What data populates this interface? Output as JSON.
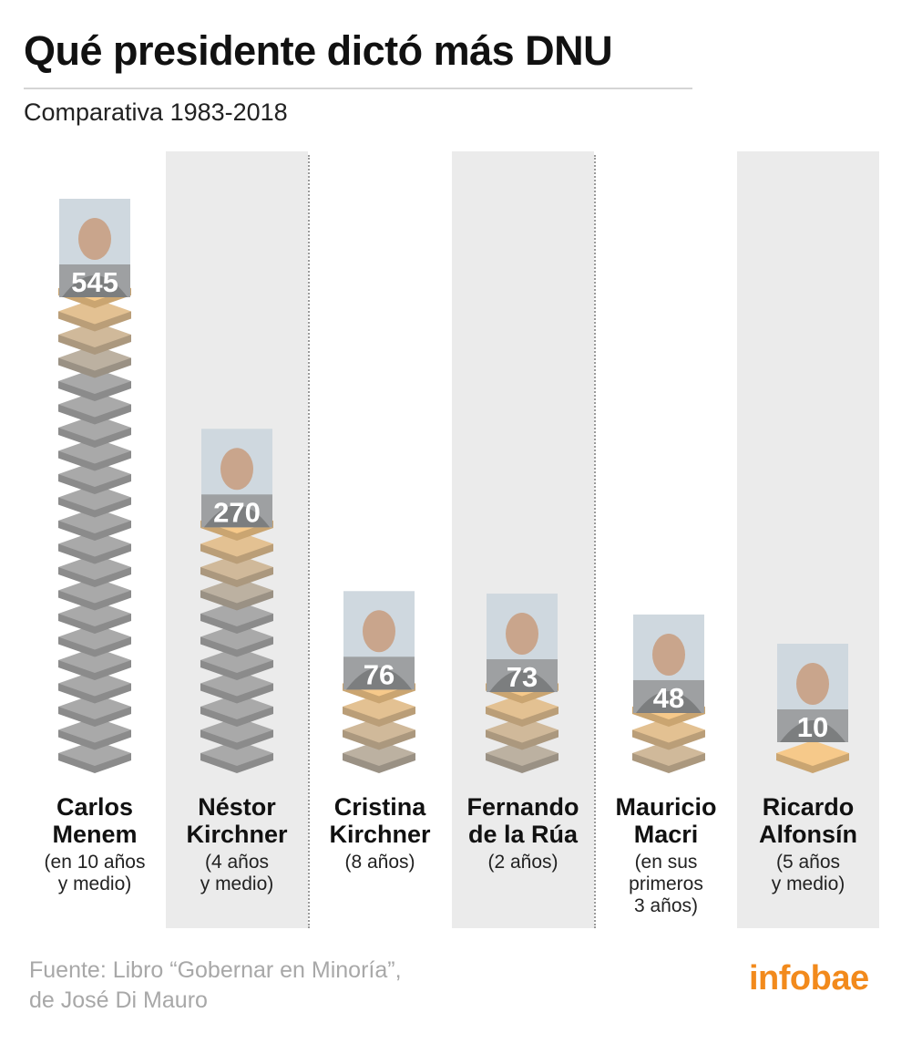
{
  "title": "Qué presidente dictó más DNU",
  "subtitle": "Comparativa 1983-2018",
  "source": {
    "line1": "Fuente: Libro “Gobernar en Minoría”,",
    "line2": "de José Di Mauro"
  },
  "logo": "infobae",
  "colors": {
    "background": "#ffffff",
    "band": "#ebebeb",
    "stack_gray": "#a9a9a9",
    "stack_top": "#f6c98a",
    "logo": "#f28a1c"
  },
  "chart_data": {
    "type": "bar",
    "title": "Qué presidente dictó más DNU",
    "subtitle": "Comparativa 1983-2018",
    "xlabel": "",
    "ylabel": "",
    "categories": [
      "Carlos Menem",
      "Néstor Kirchner",
      "Cristina Kirchner",
      "Fernando de la Rúa",
      "Mauricio Macri",
      "Ricardo Alfonsín"
    ],
    "values": [
      545,
      270,
      76,
      73,
      48,
      10
    ],
    "labels": [
      "545",
      "270",
      "76",
      "73",
      "48",
      "10"
    ],
    "presidents": [
      {
        "name1": "Carlos",
        "name2": "Menem",
        "note": [
          "(en 10 años",
          "y medio)"
        ],
        "value": 545,
        "label": "545"
      },
      {
        "name1": "Néstor",
        "name2": "Kirchner",
        "note": [
          "(4 años",
          "y medio)"
        ],
        "value": 270,
        "label": "270"
      },
      {
        "name1": "Cristina",
        "name2": "Kirchner",
        "note": [
          "(8 años)"
        ],
        "value": 76,
        "label": "76"
      },
      {
        "name1": "Fernando",
        "name2": "de la Rúa",
        "note": [
          "(2 años)"
        ],
        "value": 73,
        "label": "73"
      },
      {
        "name1": "Mauricio",
        "name2": "Macri",
        "note": [
          "(en sus",
          "primeros",
          "3 años)"
        ],
        "value": 48,
        "label": "48"
      },
      {
        "name1": "Ricardo",
        "name2": "Alfonsín",
        "note": [
          "(5 años",
          "y medio)"
        ],
        "value": 10,
        "label": "10"
      }
    ]
  }
}
